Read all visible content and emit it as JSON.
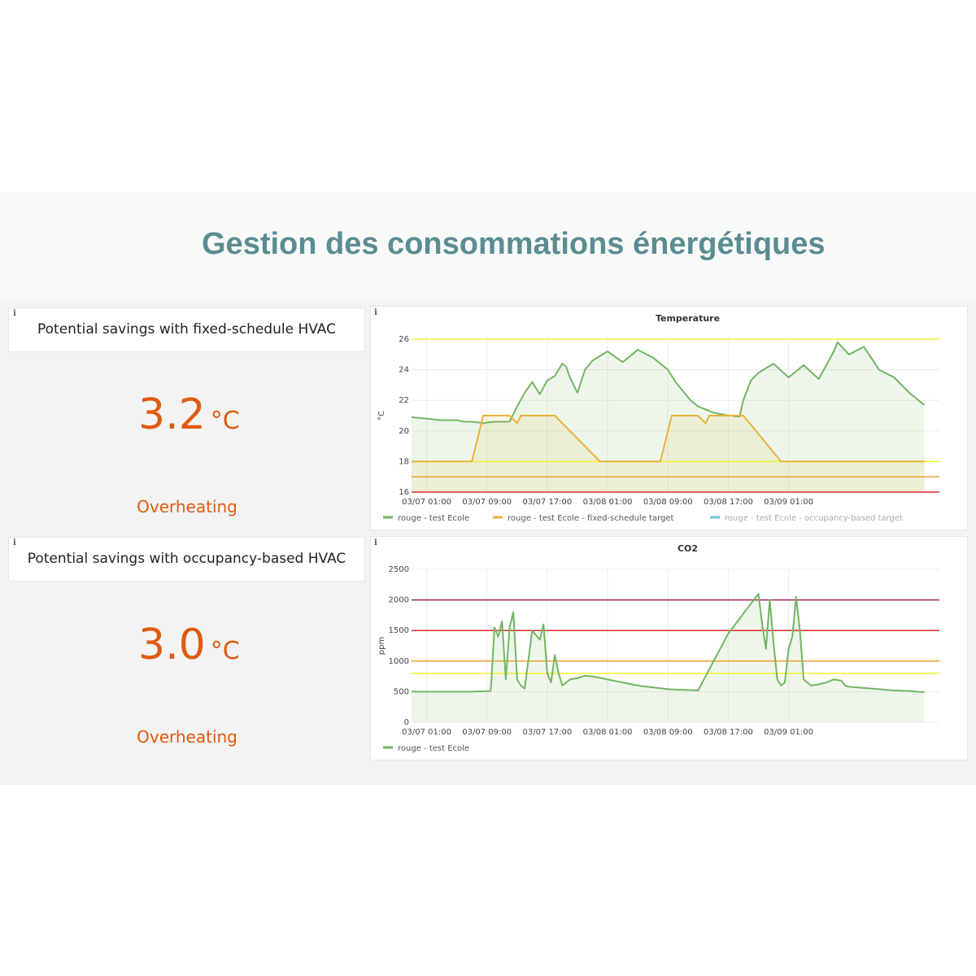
{
  "page": {
    "title": "Gestion des consommations énergétiques"
  },
  "colors": {
    "title": "#5a8c92",
    "accent_orange": "#e05a0f",
    "series_green": "#73b562",
    "target_orange": "#e8b23a",
    "occupancy_blue": "#6ec6d9",
    "threshold_yellow": "#f2f230",
    "threshold_orange": "#f0a030",
    "threshold_red": "#e02828",
    "threshold_purple": "#a0205a"
  },
  "stats": [
    {
      "info": "i",
      "title": "Potential savings with fixed-schedule HVAC",
      "value": "3.2",
      "unit": "°C",
      "status": "Overheating"
    },
    {
      "info": "i",
      "title": "Potential savings with occupancy-based HVAC",
      "value": "3.0",
      "unit": "°C",
      "status": "Overheating"
    }
  ],
  "chart_data": [
    {
      "type": "line",
      "info": "i",
      "title": "Temperature",
      "ylabel": "°C",
      "xlabel": "",
      "ylim": [
        16,
        26
      ],
      "yticks": [
        "16",
        "18",
        "20",
        "22",
        "24",
        "26"
      ],
      "xlim_hours": [
        -2,
        68
      ],
      "xtick_hours": [
        0,
        8,
        16,
        24,
        32,
        40,
        48
      ],
      "xticks": [
        "03/07 01:00",
        "03/07 09:00",
        "03/07 17:00",
        "03/08 01:00",
        "03/08 09:00",
        "03/08 17:00",
        "03/09 01:00"
      ],
      "thresholds": [
        {
          "value": 26,
          "color": "#f2f230"
        },
        {
          "value": 18,
          "color": "#f2f230"
        },
        {
          "value": 17,
          "color": "#f0a030"
        },
        {
          "value": 16,
          "color": "#e02828"
        }
      ],
      "series": [
        {
          "name": "rouge - test Ecole",
          "color": "#73b562",
          "fill": true,
          "x": [
            -2,
            0,
            2,
            4,
            5,
            6,
            7,
            7.5,
            8,
            9,
            10,
            11,
            12,
            13,
            14,
            15,
            16,
            17,
            17.5,
            18,
            18.5,
            19,
            20,
            21,
            22,
            24,
            26,
            28,
            30,
            32,
            33,
            34,
            34.5,
            35,
            35.5,
            36,
            37,
            37.5,
            38,
            39,
            40,
            40.5,
            41,
            41.5,
            42,
            43,
            44,
            46,
            48,
            50,
            52,
            54,
            54.5,
            56,
            58,
            60,
            62,
            64,
            66
          ],
          "y": [
            20.9,
            20.8,
            20.7,
            20.7,
            20.6,
            20.6,
            20.55,
            20.5,
            20.55,
            20.6,
            20.6,
            20.6,
            21.6,
            22.5,
            23.2,
            22.4,
            23.3,
            23.6,
            24.0,
            24.4,
            24.2,
            23.5,
            22.5,
            24.0,
            24.6,
            25.2,
            24.5,
            25.3,
            24.8,
            24.0,
            23.2,
            22.6,
            22.3,
            22.0,
            21.8,
            21.6,
            21.4,
            21.3,
            21.2,
            21.1,
            21.0,
            21.0,
            20.95,
            20.95,
            22.0,
            23.3,
            23.8,
            24.4,
            23.5,
            24.3,
            23.4,
            25.2,
            25.8,
            25.0,
            25.5,
            24.0,
            23.5,
            22.5,
            21.7
          ]
        },
        {
          "name": "rouge - test Ecole - fixed-schedule target",
          "color": "#e8b23a",
          "fill": true,
          "x": [
            -2,
            6,
            7.5,
            11,
            12,
            12.5,
            17,
            23,
            31,
            32.5,
            36,
            37,
            37.5,
            42,
            47,
            66
          ],
          "y": [
            18,
            18,
            21,
            21,
            20.5,
            21,
            21,
            18,
            18,
            21,
            21,
            20.5,
            21,
            21,
            18,
            18
          ]
        },
        {
          "name": "rouge - test Ecole - occupancy-based target",
          "color": "#6ec6d9",
          "hidden": true,
          "x": [],
          "y": []
        }
      ]
    },
    {
      "type": "line",
      "info": "i",
      "title": "CO2",
      "ylabel": "ppm",
      "xlabel": "",
      "ylim": [
        0,
        2500
      ],
      "yticks": [
        "0",
        "500",
        "1000",
        "1500",
        "2000",
        "2500"
      ],
      "xlim_hours": [
        -2,
        68
      ],
      "xtick_hours": [
        0,
        8,
        16,
        24,
        32,
        40,
        48
      ],
      "xticks": [
        "03/07 01:00",
        "03/07 09:00",
        "03/07 17:00",
        "03/08 01:00",
        "03/08 09:00",
        "03/08 17:00",
        "03/09 01:00"
      ],
      "thresholds": [
        {
          "value": 2000,
          "color": "#a0205a"
        },
        {
          "value": 1500,
          "color": "#e02828"
        },
        {
          "value": 1000,
          "color": "#f0a030"
        },
        {
          "value": 800,
          "color": "#f2f230"
        }
      ],
      "series": [
        {
          "name": "rouge - test Ecole",
          "color": "#73b562",
          "fill": true,
          "x": [
            -2,
            2,
            6,
            8.5,
            9,
            9.5,
            10,
            10.5,
            11,
            11.5,
            12,
            12.5,
            13,
            14,
            15,
            15.5,
            16,
            16.5,
            17,
            17.5,
            18,
            19,
            20,
            21,
            22,
            24,
            28,
            32,
            36,
            40,
            44,
            44.5,
            45,
            45.5,
            46,
            46.5,
            47,
            47.5,
            48,
            48.5,
            49,
            49.5,
            50,
            51,
            52,
            53,
            54,
            54.5,
            55,
            55.5,
            56,
            58,
            60,
            62,
            64,
            66
          ],
          "y": [
            500,
            500,
            500,
            510,
            1550,
            1400,
            1650,
            700,
            1550,
            1800,
            700,
            600,
            550,
            1500,
            1350,
            1600,
            800,
            650,
            1100,
            800,
            600,
            700,
            720,
            760,
            750,
            700,
            600,
            540,
            520,
            1450,
            2100,
            1600,
            1200,
            2000,
            1300,
            700,
            600,
            650,
            1200,
            1400,
            2050,
            1500,
            700,
            600,
            620,
            650,
            700,
            690,
            680,
            600,
            580,
            560,
            540,
            520,
            510,
            490
          ]
        }
      ]
    }
  ]
}
